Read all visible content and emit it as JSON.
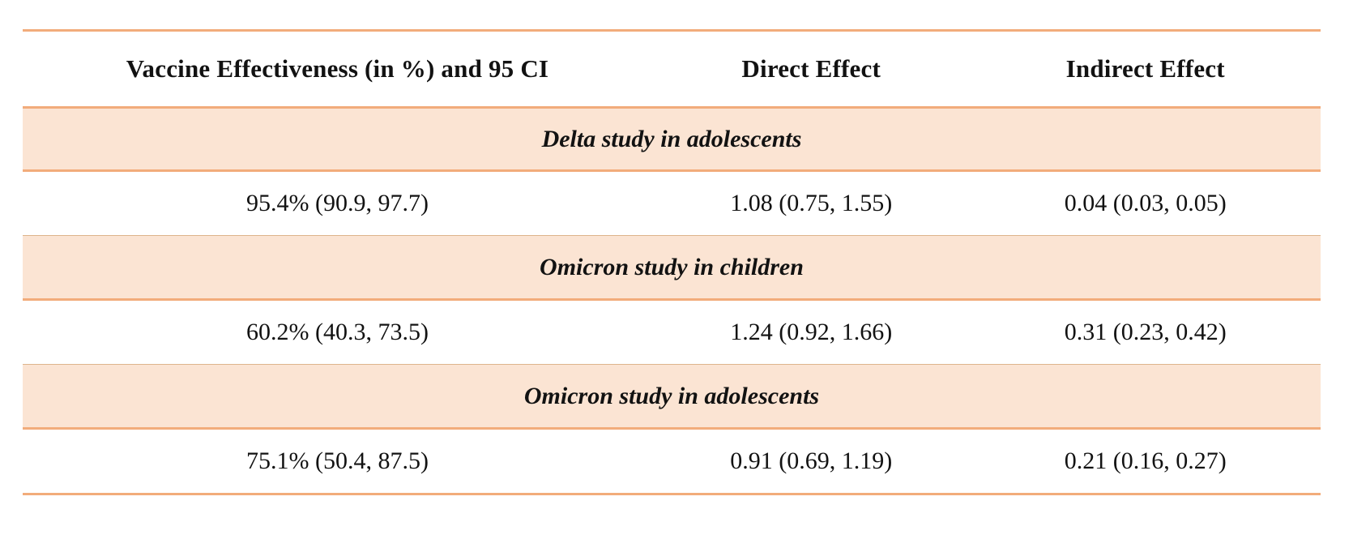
{
  "table": {
    "columns": [
      {
        "label": "Vaccine Effectiveness (in %) and 95 CI"
      },
      {
        "label": "Direct Effect"
      },
      {
        "label": "Indirect Effect"
      }
    ],
    "sections": [
      {
        "title": "Delta study in adolescents",
        "row": {
          "vaccine_effectiveness": "95.4% (90.9, 97.7)",
          "direct_effect": "1.08 (0.75, 1.55)",
          "indirect_effect": "0.04 (0.03, 0.05)"
        }
      },
      {
        "title": "Omicron study in children",
        "row": {
          "vaccine_effectiveness": "60.2% (40.3, 73.5)",
          "direct_effect": "1.24 (0.92, 1.66)",
          "indirect_effect": "0.31 (0.23, 0.42)"
        }
      },
      {
        "title": "Omicron study in adolescents",
        "row": {
          "vaccine_effectiveness": "75.1% (50.4, 87.5)",
          "direct_effect": "0.91 (0.69, 1.19)",
          "indirect_effect": "0.21 (0.16, 0.27)"
        }
      }
    ],
    "colors": {
      "band_background": "#fbe4d3",
      "rule_strong": "#f2ac7b",
      "rule_faint": "#ddb48c",
      "text": "#121212"
    }
  }
}
